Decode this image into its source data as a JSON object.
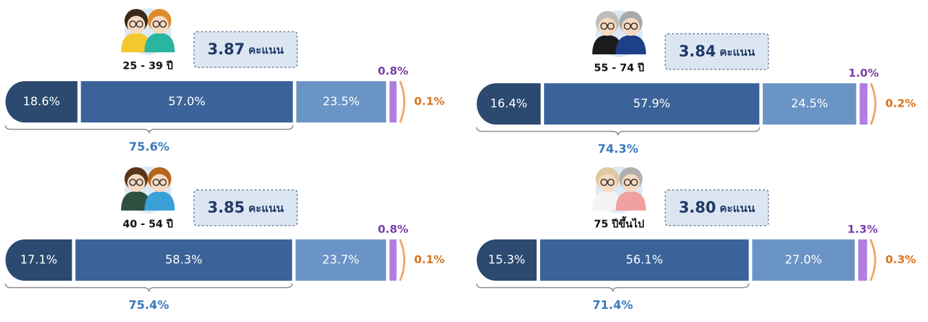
{
  "chart_data": [
    {
      "type": "stacked-bar",
      "label": "25 - 39 ปี",
      "score": 3.87,
      "score_label": "3.87",
      "score_unit": "คะแนน",
      "values": [
        18.6,
        57.0,
        23.5,
        0.8,
        0.1
      ],
      "value_labels": [
        "18.6%",
        "57.0%",
        "23.5%",
        "0.8%",
        "0.1%"
      ],
      "colors": [
        "#2c4a70",
        "#3b6399",
        "#6b94c6",
        "#b07ee0",
        "#f2a566"
      ],
      "total": 75.6,
      "total_label": "75.6%"
    },
    {
      "type": "stacked-bar",
      "label": "55 - 74 ปี",
      "score": 3.84,
      "score_label": "3.84",
      "score_unit": "คะแนน",
      "values": [
        16.4,
        57.9,
        24.5,
        1.0,
        0.2
      ],
      "value_labels": [
        "16.4%",
        "57.9%",
        "24.5%",
        "1.0%",
        "0.2%"
      ],
      "colors": [
        "#2c4a70",
        "#3b6399",
        "#6b94c6",
        "#b07ee0",
        "#f2a566"
      ],
      "total": 74.3,
      "total_label": "74.3%"
    },
    {
      "type": "stacked-bar",
      "label": "40 - 54 ปี",
      "score": 3.85,
      "score_label": "3.85",
      "score_unit": "คะแนน",
      "values": [
        17.1,
        58.3,
        23.7,
        0.8,
        0.1
      ],
      "value_labels": [
        "17.1%",
        "58.3%",
        "23.7%",
        "0.8%",
        "0.1%"
      ],
      "colors": [
        "#2c4a70",
        "#3b6399",
        "#6b94c6",
        "#b07ee0",
        "#f2a566"
      ],
      "total": 75.4,
      "total_label": "75.4%"
    },
    {
      "type": "stacked-bar",
      "label": "75 ปีขึ้นไป",
      "score": 3.8,
      "score_label": "3.80",
      "score_unit": "คะแนน",
      "values": [
        15.3,
        56.1,
        27.0,
        1.3,
        0.3
      ],
      "value_labels": [
        "15.3%",
        "56.1%",
        "27.0%",
        "1.3%",
        "0.3%"
      ],
      "colors": [
        "#2c4a70",
        "#3b6399",
        "#6b94c6",
        "#b07ee0",
        "#f2a566"
      ],
      "total": 71.4,
      "total_label": "71.4%"
    }
  ]
}
